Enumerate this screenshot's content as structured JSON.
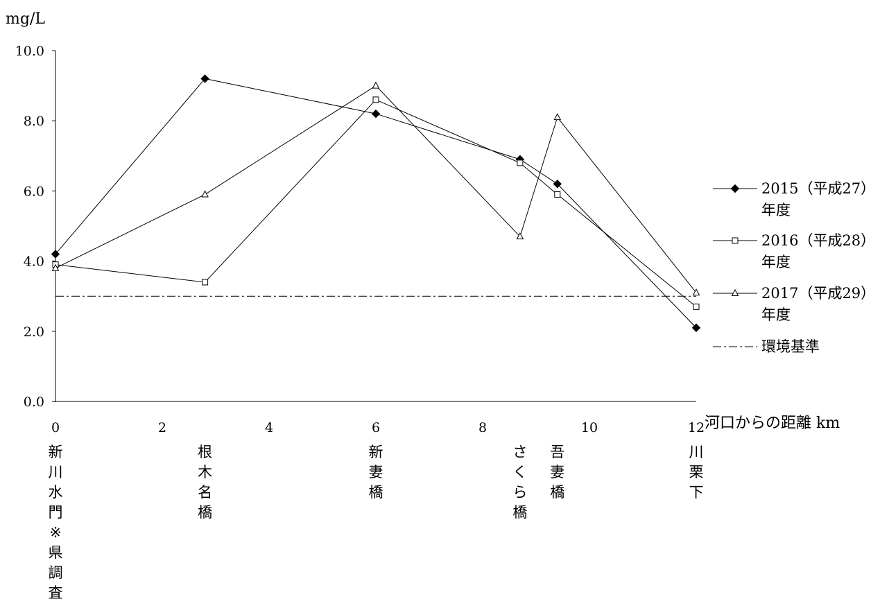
{
  "chart_data": {
    "type": "line",
    "y_unit": "mg/L",
    "xlabel": "河口からの距離 km",
    "xlim": [
      0,
      12
    ],
    "ylim": [
      0,
      10
    ],
    "x_ticks": [
      {
        "value": 0,
        "label": "0"
      },
      {
        "value": 2,
        "label": "2"
      },
      {
        "value": 4,
        "label": "4"
      },
      {
        "value": 6,
        "label": "6"
      },
      {
        "value": 8,
        "label": "8"
      },
      {
        "value": 10,
        "label": "10"
      },
      {
        "value": 12,
        "label": "12"
      }
    ],
    "y_ticks": [
      {
        "value": 0,
        "label": "0.0"
      },
      {
        "value": 2,
        "label": "2.0"
      },
      {
        "value": 4,
        "label": "4.0"
      },
      {
        "value": 6,
        "label": "6.0"
      },
      {
        "value": 8,
        "label": "8.0"
      },
      {
        "value": 10,
        "label": "10.0"
      }
    ],
    "sites": [
      {
        "x": 0,
        "label": "新川水門※県調査"
      },
      {
        "x": 2.8,
        "label": "根木名橋"
      },
      {
        "x": 6,
        "label": "新妻橋"
      },
      {
        "x": 8.7,
        "label": "さくら橋"
      },
      {
        "x": 9.4,
        "label": "吾妻橋"
      },
      {
        "x": 12,
        "label": "川栗下"
      }
    ],
    "series": [
      {
        "name": "2015（平成27）年度",
        "legend_lines": [
          "2015（平成27）",
          "年度"
        ],
        "marker": "diamond-filled",
        "x": [
          0,
          2.8,
          6,
          8.7,
          9.4,
          12
        ],
        "values": [
          4.2,
          9.2,
          8.2,
          6.9,
          6.2,
          2.1
        ]
      },
      {
        "name": "2016（平成28）年度",
        "legend_lines": [
          "2016（平成28）",
          "年度"
        ],
        "marker": "square-open",
        "x": [
          0,
          2.8,
          6,
          8.7,
          9.4,
          12
        ],
        "values": [
          3.9,
          3.4,
          8.6,
          6.8,
          5.9,
          2.7
        ]
      },
      {
        "name": "2017（平成29）年度",
        "legend_lines": [
          "2017（平成29）",
          "年度"
        ],
        "marker": "triangle-open",
        "x": [
          0,
          2.8,
          6,
          8.7,
          9.4,
          12
        ],
        "values": [
          3.8,
          5.9,
          9.0,
          4.7,
          8.1,
          3.1
        ]
      }
    ],
    "reference_line": {
      "name": "環境基準",
      "value": 3.0,
      "style": "dash-dot"
    },
    "legend_position": "right",
    "grid": false,
    "colors": {
      "line": "#000000",
      "background": "#ffffff"
    }
  }
}
